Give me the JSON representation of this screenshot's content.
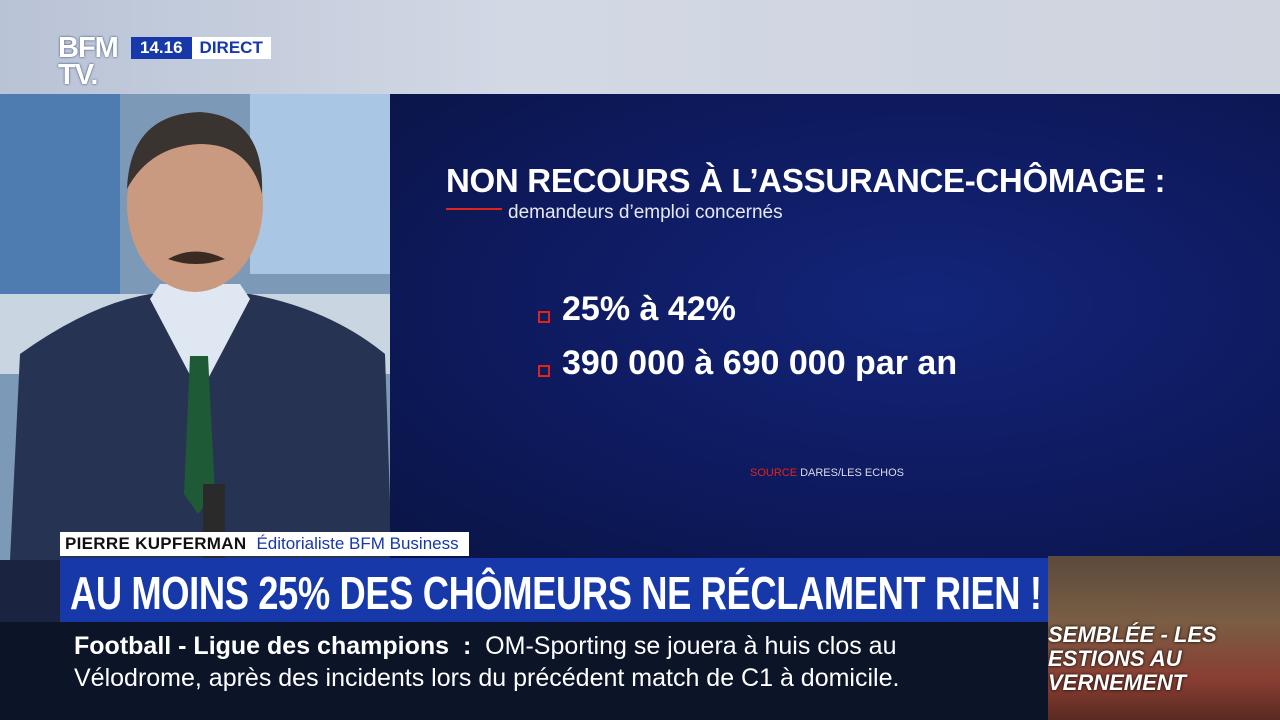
{
  "logo": {
    "line1": "BFM",
    "line2": "TV."
  },
  "clock": {
    "time": "14.16",
    "status": "DIRECT"
  },
  "graphic": {
    "title": "NON RECOURS À L’ASSURANCE-CHÔMAGE :",
    "subtitle": "demandeurs d’emploi concernés",
    "bullets": [
      "25% à 42%",
      "390 000 à 690 000 par an"
    ],
    "source_label": "SOURCE",
    "source": "DARES/LES ECHOS"
  },
  "guest": {
    "name": "PIERRE KUPFERMAN",
    "role": "Éditorialiste BFM Business"
  },
  "headline": "AU MOINS 25% DES CHÔMEURS NE RÉCLAMENT RIEN !",
  "ticker": {
    "topic": "Football - Ligue des champions",
    "separator": ":",
    "line1": "OM-Sporting se jouera à huis clos au",
    "line2": "Vélodrome, après des incidents lors du précédent match de C1 à domicile."
  },
  "thumbnail": {
    "lines": [
      "SEMBLÉE - LES",
      "ESTIONS AU",
      "VERNEMENT"
    ]
  }
}
